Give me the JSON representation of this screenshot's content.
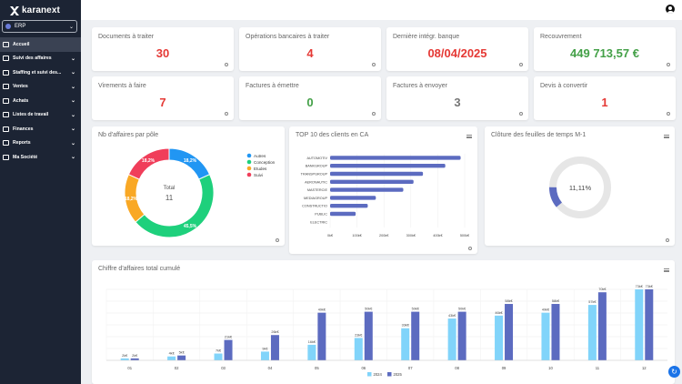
{
  "app": {
    "name": "karanext",
    "module": "ERP"
  },
  "sidebar": {
    "items": [
      {
        "label": "Accueil",
        "icon": "home-icon",
        "active": true,
        "chevron": false
      },
      {
        "label": "Suivi des affaires",
        "icon": "briefcase-icon",
        "chevron": true
      },
      {
        "label": "Staffing et suivi des...",
        "icon": "users-icon",
        "chevron": true
      },
      {
        "label": "Ventes",
        "icon": "sales-icon",
        "chevron": true
      },
      {
        "label": "Achats",
        "icon": "cart-icon",
        "chevron": true
      },
      {
        "label": "Listes de travail",
        "icon": "list-icon",
        "chevron": true
      },
      {
        "label": "Finances",
        "icon": "finance-icon",
        "chevron": true
      },
      {
        "label": "Reports",
        "icon": "report-icon",
        "chevron": true
      },
      {
        "label": "Ma Société",
        "icon": "company-icon",
        "chevron": true
      }
    ]
  },
  "kpis": [
    {
      "title": "Documents à traiter",
      "value": "30",
      "color": "#e53935"
    },
    {
      "title": "Opérations bancaires à traiter",
      "value": "4",
      "color": "#e53935"
    },
    {
      "title": "Dernière intégr. banque",
      "value": "08/04/2025",
      "color": "#e53935"
    },
    {
      "title": "Recouvrement",
      "value": "449 713,57 €",
      "color": "#43a047"
    },
    {
      "title": "Virements à faire",
      "value": "7",
      "color": "#e53935"
    },
    {
      "title": "Factures à émettre",
      "value": "0",
      "color": "#43a047"
    },
    {
      "title": "Factures à envoyer",
      "value": "3",
      "color": "#757575"
    },
    {
      "title": "Devis à convertir",
      "value": "1",
      "color": "#e53935"
    }
  ],
  "panels": {
    "poles_title": "Nb d'affaires par pôle",
    "clients_title": "TOP 10 des clients en CA",
    "cloture_title": "Clôture des feuilles de temps M-1",
    "ca_title": "Chiffre d'affaires total cumulé"
  },
  "chart_data": [
    {
      "type": "pie",
      "title": "Nb d'affaires par pôle",
      "center_label": "Total",
      "center_value": "11",
      "slices": [
        {
          "name": "Autres",
          "percent": 18.2,
          "label": "18,2%",
          "color": "#2196f3"
        },
        {
          "name": "Conception",
          "percent": 45.5,
          "label": "45,5%",
          "color": "#1ed07c"
        },
        {
          "name": "Etudes",
          "percent": 18.2,
          "label": "18,2%",
          "color": "#f9a825"
        },
        {
          "name": "Suivi",
          "percent": 18.2,
          "label": "18,2%",
          "color": "#f03e5a"
        }
      ],
      "legend": "right"
    },
    {
      "type": "bar",
      "orientation": "horizontal",
      "title": "TOP 10 des clients en CA",
      "categories": [
        "AUTOMOTIV",
        "BANKGROUP",
        "TRANSPGROUP",
        "AERONAUTIC",
        "MASTERCIE",
        "MEDIAGROUP",
        "CONSTRUCTIO",
        "PUBLIC",
        "ELECTRIC"
      ],
      "values": [
        485,
        428,
        345,
        310,
        272,
        170,
        140,
        95,
        0
      ],
      "color": "#5c6bc0",
      "xticks": [
        "0k€",
        "100k€",
        "200k€",
        "300k€",
        "400k€",
        "500k€"
      ],
      "xlim": [
        0,
        500
      ]
    },
    {
      "type": "pie",
      "title": "Clôture des feuilles de temps M-1",
      "value": 11.11,
      "label": "11,11%",
      "color": "#5c6bc0",
      "track_color": "#e6e6e6"
    },
    {
      "type": "bar",
      "title": "Chiffre d'affaires total cumulé",
      "categories": [
        "01",
        "02",
        "03",
        "04",
        "05",
        "06",
        "07",
        "08",
        "09",
        "10",
        "11",
        "12"
      ],
      "series": [
        {
          "name": "2024",
          "values": [
            2,
            4,
            7,
            9,
            16,
            23,
            33,
            43,
            46,
            49,
            57,
            73
          ],
          "labels": [
            "2k€",
            "4k€",
            "7k€",
            "9k€",
            "16k€",
            "23k€",
            "33k€",
            "43k€",
            "46k€",
            "49k€",
            "57k€",
            "73k€"
          ],
          "color": "#81d4fa"
        },
        {
          "name": "2025",
          "values": [
            2,
            5,
            21,
            26,
            49,
            50,
            50,
            50,
            58,
            58,
            70,
            73
          ],
          "labels": [
            "2k€",
            "5k€",
            "21k€",
            "26k€",
            "49k€",
            "50k€",
            "50k€",
            "50k€",
            "58k€",
            "58k€",
            "70k€",
            "73k€"
          ],
          "color": "#5c6bc0"
        }
      ],
      "ylim": [
        0,
        73
      ],
      "legend": "bottom",
      "grid": true
    }
  ]
}
